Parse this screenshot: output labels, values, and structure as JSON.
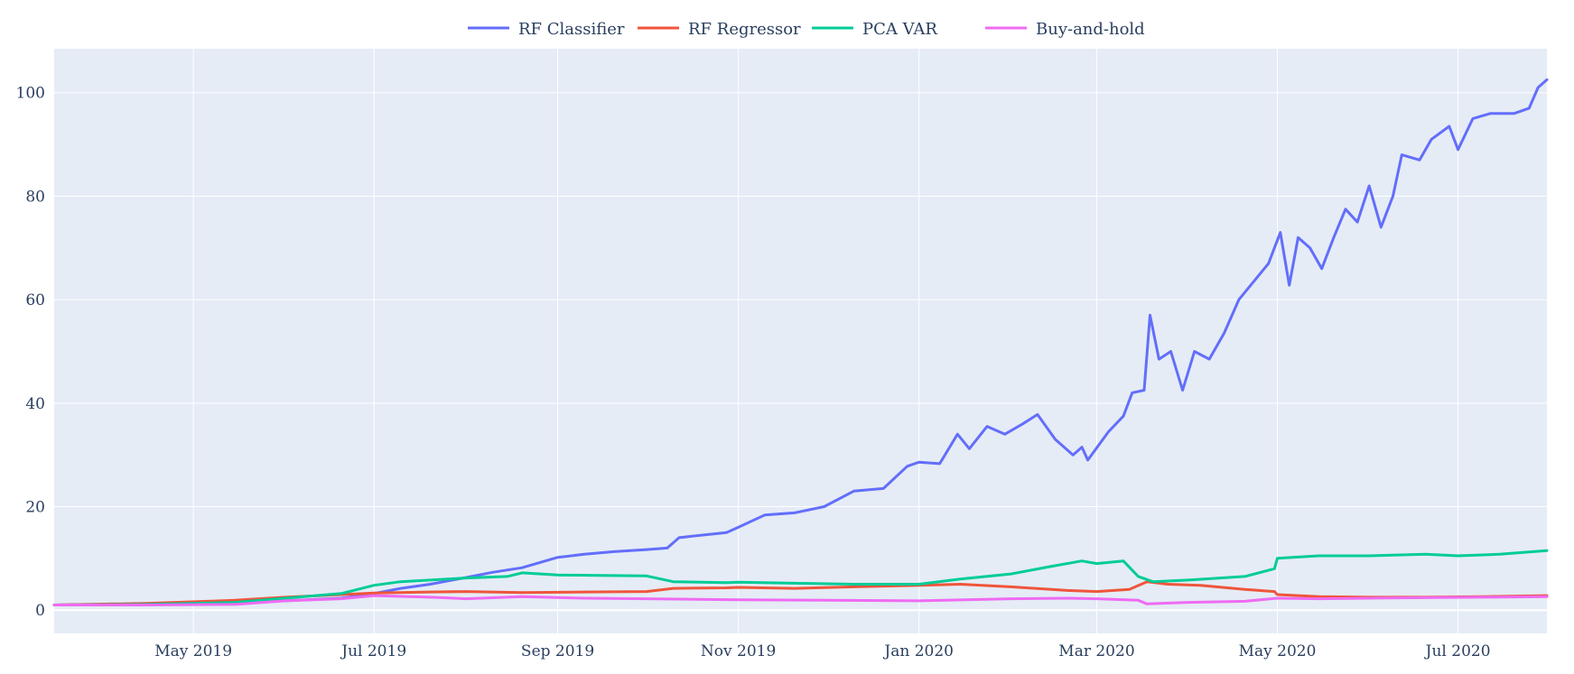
{
  "chart_data": {
    "type": "line",
    "title": "",
    "xlabel": "",
    "ylabel": "",
    "xlim": [
      "2019-03-15",
      "2020-07-31"
    ],
    "ylim": [
      -4.5,
      108.5
    ],
    "yticks": [
      0,
      20,
      40,
      60,
      80,
      100
    ],
    "xticks": [
      {
        "date": "2019-05-01",
        "label": "May 2019"
      },
      {
        "date": "2019-07-01",
        "label": "Jul 2019"
      },
      {
        "date": "2019-09-01",
        "label": "Sep 2019"
      },
      {
        "date": "2019-11-01",
        "label": "Nov 2019"
      },
      {
        "date": "2020-01-01",
        "label": "Jan 2020"
      },
      {
        "date": "2020-03-01",
        "label": "Mar 2020"
      },
      {
        "date": "2020-05-01",
        "label": "May 2020"
      },
      {
        "date": "2020-07-01",
        "label": "Jul 2020"
      }
    ],
    "grid": true,
    "legend_position": "top-center",
    "plot_background": "#e5ecf6",
    "series": [
      {
        "name": "RF Classifier",
        "color": "#636efa",
        "points": [
          [
            "2019-03-15",
            1.0
          ],
          [
            "2019-04-15",
            1.2
          ],
          [
            "2019-05-15",
            1.4
          ],
          [
            "2019-06-01",
            1.8
          ],
          [
            "2019-06-20",
            2.3
          ],
          [
            "2019-07-01",
            3.2
          ],
          [
            "2019-07-10",
            4.2
          ],
          [
            "2019-07-20",
            5.0
          ],
          [
            "2019-08-01",
            6.3
          ],
          [
            "2019-08-10",
            7.3
          ],
          [
            "2019-08-20",
            8.2
          ],
          [
            "2019-09-01",
            10.2
          ],
          [
            "2019-09-10",
            10.8
          ],
          [
            "2019-09-20",
            11.3
          ],
          [
            "2019-10-01",
            11.7
          ],
          [
            "2019-10-08",
            12.0
          ],
          [
            "2019-10-12",
            14.0
          ],
          [
            "2019-10-20",
            14.5
          ],
          [
            "2019-10-28",
            15.0
          ],
          [
            "2019-11-01",
            16.0
          ],
          [
            "2019-11-10",
            18.4
          ],
          [
            "2019-11-20",
            18.8
          ],
          [
            "2019-11-30",
            20.0
          ],
          [
            "2019-12-10",
            23.0
          ],
          [
            "2019-12-20",
            23.5
          ],
          [
            "2019-12-28",
            27.8
          ],
          [
            "2020-01-01",
            28.6
          ],
          [
            "2020-01-08",
            28.3
          ],
          [
            "2020-01-14",
            34.0
          ],
          [
            "2020-01-18",
            31.2
          ],
          [
            "2020-01-24",
            35.5
          ],
          [
            "2020-01-30",
            34.0
          ],
          [
            "2020-02-05",
            36.0
          ],
          [
            "2020-02-10",
            37.8
          ],
          [
            "2020-02-16",
            33.0
          ],
          [
            "2020-02-22",
            30.0
          ],
          [
            "2020-02-25",
            31.5
          ],
          [
            "2020-02-27",
            29.0
          ],
          [
            "2020-03-05",
            34.5
          ],
          [
            "2020-03-10",
            37.5
          ],
          [
            "2020-03-13",
            42.0
          ],
          [
            "2020-03-17",
            42.5
          ],
          [
            "2020-03-19",
            57.0
          ],
          [
            "2020-03-22",
            48.5
          ],
          [
            "2020-03-26",
            50.0
          ],
          [
            "2020-03-30",
            42.5
          ],
          [
            "2020-04-03",
            50.0
          ],
          [
            "2020-04-08",
            48.5
          ],
          [
            "2020-04-13",
            53.5
          ],
          [
            "2020-04-18",
            60.0
          ],
          [
            "2020-04-23",
            63.5
          ],
          [
            "2020-04-28",
            67.0
          ],
          [
            "2020-05-02",
            73.0
          ],
          [
            "2020-05-05",
            62.8
          ],
          [
            "2020-05-08",
            72.0
          ],
          [
            "2020-05-12",
            70.0
          ],
          [
            "2020-05-16",
            66.0
          ],
          [
            "2020-05-20",
            72.0
          ],
          [
            "2020-05-24",
            77.5
          ],
          [
            "2020-05-28",
            75.0
          ],
          [
            "2020-06-01",
            82.0
          ],
          [
            "2020-06-05",
            74.0
          ],
          [
            "2020-06-09",
            80.0
          ],
          [
            "2020-06-12",
            88.0
          ],
          [
            "2020-06-18",
            87.0
          ],
          [
            "2020-06-22",
            91.0
          ],
          [
            "2020-06-28",
            93.5
          ],
          [
            "2020-07-01",
            89.0
          ],
          [
            "2020-07-06",
            95.0
          ],
          [
            "2020-07-12",
            96.0
          ],
          [
            "2020-07-20",
            96.0
          ],
          [
            "2020-07-25",
            97.0
          ],
          [
            "2020-07-28",
            101.0
          ],
          [
            "2020-07-31",
            102.5
          ]
        ]
      },
      {
        "name": "RF Regressor",
        "color": "#ef553b",
        "points": [
          [
            "2019-03-15",
            1.0
          ],
          [
            "2019-04-15",
            1.3
          ],
          [
            "2019-05-15",
            1.9
          ],
          [
            "2019-06-01",
            2.5
          ],
          [
            "2019-06-20",
            3.0
          ],
          [
            "2019-07-01",
            3.3
          ],
          [
            "2019-07-20",
            3.5
          ],
          [
            "2019-08-01",
            3.6
          ],
          [
            "2019-08-20",
            3.4
          ],
          [
            "2019-09-10",
            3.5
          ],
          [
            "2019-10-01",
            3.6
          ],
          [
            "2019-10-10",
            4.2
          ],
          [
            "2019-10-28",
            4.3
          ],
          [
            "2019-11-01",
            4.4
          ],
          [
            "2019-11-20",
            4.2
          ],
          [
            "2019-12-10",
            4.5
          ],
          [
            "2020-01-01",
            4.8
          ],
          [
            "2020-01-15",
            5.0
          ],
          [
            "2020-02-01",
            4.5
          ],
          [
            "2020-02-20",
            3.8
          ],
          [
            "2020-03-01",
            3.6
          ],
          [
            "2020-03-12",
            4.0
          ],
          [
            "2020-03-18",
            5.5
          ],
          [
            "2020-03-25",
            5.0
          ],
          [
            "2020-04-05",
            4.8
          ],
          [
            "2020-04-20",
            4.0
          ],
          [
            "2020-04-30",
            3.6
          ],
          [
            "2020-05-01",
            3.0
          ],
          [
            "2020-05-15",
            2.6
          ],
          [
            "2020-06-01",
            2.5
          ],
          [
            "2020-06-20",
            2.5
          ],
          [
            "2020-07-10",
            2.6
          ],
          [
            "2020-07-31",
            2.8
          ]
        ]
      },
      {
        "name": "PCA VAR",
        "color": "#00cc96",
        "points": [
          [
            "2019-03-15",
            1.0
          ],
          [
            "2019-04-15",
            1.1
          ],
          [
            "2019-05-15",
            1.5
          ],
          [
            "2019-06-01",
            2.3
          ],
          [
            "2019-06-20",
            3.2
          ],
          [
            "2019-07-01",
            4.8
          ],
          [
            "2019-07-10",
            5.5
          ],
          [
            "2019-07-20",
            5.8
          ],
          [
            "2019-08-01",
            6.2
          ],
          [
            "2019-08-15",
            6.5
          ],
          [
            "2019-08-20",
            7.2
          ],
          [
            "2019-09-01",
            6.8
          ],
          [
            "2019-09-15",
            6.7
          ],
          [
            "2019-10-01",
            6.6
          ],
          [
            "2019-10-10",
            5.5
          ],
          [
            "2019-10-28",
            5.3
          ],
          [
            "2019-11-01",
            5.4
          ],
          [
            "2019-11-20",
            5.2
          ],
          [
            "2019-12-10",
            5.0
          ],
          [
            "2020-01-01",
            5.0
          ],
          [
            "2020-01-15",
            6.0
          ],
          [
            "2020-02-01",
            7.0
          ],
          [
            "2020-02-15",
            8.5
          ],
          [
            "2020-02-25",
            9.5
          ],
          [
            "2020-03-01",
            9.0
          ],
          [
            "2020-03-10",
            9.5
          ],
          [
            "2020-03-15",
            6.5
          ],
          [
            "2020-03-20",
            5.5
          ],
          [
            "2020-04-01",
            5.8
          ],
          [
            "2020-04-20",
            6.5
          ],
          [
            "2020-04-30",
            8.0
          ],
          [
            "2020-05-01",
            10.0
          ],
          [
            "2020-05-15",
            10.5
          ],
          [
            "2020-06-01",
            10.5
          ],
          [
            "2020-06-20",
            10.8
          ],
          [
            "2020-07-01",
            10.5
          ],
          [
            "2020-07-15",
            10.8
          ],
          [
            "2020-07-31",
            11.5
          ]
        ]
      },
      {
        "name": "Buy-and-hold",
        "color": "#ef6bf2",
        "points": [
          [
            "2019-03-15",
            1.0
          ],
          [
            "2019-04-15",
            1.0
          ],
          [
            "2019-05-15",
            1.1
          ],
          [
            "2019-06-01",
            1.8
          ],
          [
            "2019-06-20",
            2.2
          ],
          [
            "2019-07-01",
            2.8
          ],
          [
            "2019-07-20",
            2.5
          ],
          [
            "2019-08-01",
            2.2
          ],
          [
            "2019-08-20",
            2.6
          ],
          [
            "2019-09-10",
            2.3
          ],
          [
            "2019-10-01",
            2.2
          ],
          [
            "2019-11-01",
            2.0
          ],
          [
            "2019-12-01",
            1.9
          ],
          [
            "2020-01-01",
            1.8
          ],
          [
            "2020-02-01",
            2.2
          ],
          [
            "2020-02-20",
            2.3
          ],
          [
            "2020-03-01",
            2.2
          ],
          [
            "2020-03-15",
            1.9
          ],
          [
            "2020-03-18",
            1.2
          ],
          [
            "2020-04-01",
            1.5
          ],
          [
            "2020-04-20",
            1.7
          ],
          [
            "2020-05-01",
            2.3
          ],
          [
            "2020-05-15",
            2.2
          ],
          [
            "2020-06-01",
            2.3
          ],
          [
            "2020-06-20",
            2.4
          ],
          [
            "2020-07-10",
            2.5
          ],
          [
            "2020-07-31",
            2.6
          ]
        ]
      }
    ]
  }
}
